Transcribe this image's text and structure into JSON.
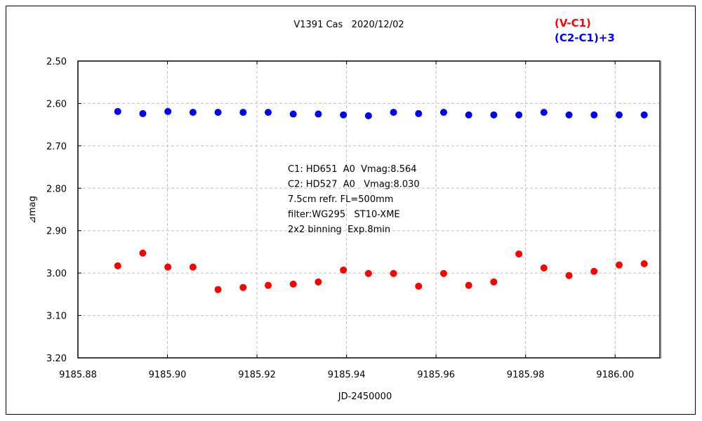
{
  "chart_data": {
    "type": "scatter",
    "title": "V1391 Cas   2020/12/02",
    "xlabel": "JD-2450000",
    "ylabel": "⊿mag",
    "xlim": [
      9185.88,
      9186.01
    ],
    "ylim": [
      2.5,
      3.2
    ],
    "y_inverted": true,
    "grid": true,
    "legend_placement": "top-right",
    "x_ticks": [
      "9185.88",
      "9185.90",
      "9185.92",
      "9185.94",
      "9185.96",
      "9185.98",
      "9186.00"
    ],
    "y_ticks": [
      "2.50",
      "2.60",
      "2.70",
      "2.80",
      "2.90",
      "3.00",
      "3.10",
      "3.20"
    ],
    "annotation": [
      "C1: HD651  A0  Vmag:8.564",
      "C2: HD527  A0   Vmag:8.030",
      "7.5cm refr. FL=500mm",
      "filter:WG295   ST10-XME",
      "2x2 binning  Exp.8min"
    ],
    "x": [
      9185.8889,
      9185.8945,
      9185.9001,
      9185.9057,
      9185.9113,
      9185.9169,
      9185.9225,
      9185.9281,
      9185.9337,
      9185.9393,
      9185.9449,
      9185.9505,
      9185.9561,
      9185.9617,
      9185.9673,
      9185.9729,
      9185.9785,
      9185.9841,
      9185.9897,
      9185.9953,
      9186.0009,
      9186.0065
    ],
    "series": [
      {
        "name": "(V-C1)",
        "color": "#ff0000",
        "values": [
          2.983,
          2.953,
          2.986,
          2.986,
          3.039,
          3.034,
          3.029,
          3.026,
          3.021,
          2.993,
          3.001,
          3.001,
          3.031,
          3.001,
          3.029,
          3.021,
          2.955,
          2.988,
          3.006,
          2.996,
          2.981,
          2.978
        ]
      },
      {
        "name": "(C2-C1)+3",
        "color": "#0000ff",
        "values": [
          2.619,
          2.624,
          2.619,
          2.621,
          2.621,
          2.621,
          2.621,
          2.625,
          2.625,
          2.627,
          2.629,
          2.621,
          2.624,
          2.621,
          2.627,
          2.627,
          2.627,
          2.621,
          2.627,
          2.627,
          2.627,
          2.627
        ]
      }
    ]
  }
}
